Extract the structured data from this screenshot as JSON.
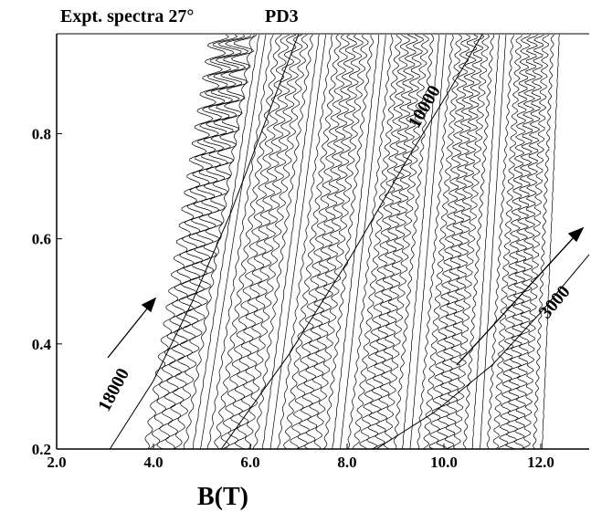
{
  "chart_data": {
    "type": "line",
    "title": "Expt. spectra 27°",
    "subtitle": "PD3",
    "x_label": "B(T)",
    "xlim": [
      2.0,
      13.0
    ],
    "ylim": [
      0.2,
      0.99
    ],
    "xticks": [
      {
        "value": 2,
        "label": "2.0"
      },
      {
        "value": 4,
        "label": "4.0"
      },
      {
        "value": 6,
        "label": "6.0"
      },
      {
        "value": 8,
        "label": "8.0"
      },
      {
        "value": 10,
        "label": "10.0"
      },
      {
        "value": 12,
        "label": "12.0"
      }
    ],
    "yticks": [
      0.2,
      0.4,
      0.6,
      0.8
    ],
    "series": [
      {
        "name": "18000",
        "color": "#000000",
        "x": [
          3.1,
          4.0,
          4.8,
          5.6,
          6.3,
          7.0
        ],
        "values": [
          0.2,
          0.33,
          0.48,
          0.65,
          0.82,
          0.99
        ]
      },
      {
        "name": "10000",
        "color": "#000000",
        "x": [
          5.4,
          6.8,
          8.1,
          9.3,
          10.1,
          10.8
        ],
        "values": [
          0.2,
          0.38,
          0.57,
          0.76,
          0.88,
          0.99
        ]
      },
      {
        "name": "3000",
        "color": "#000000",
        "x": [
          8.6,
          9.8,
          11.0,
          12.0,
          13.0
        ],
        "values": [
          0.2,
          0.27,
          0.36,
          0.46,
          0.57
        ]
      }
    ]
  }
}
